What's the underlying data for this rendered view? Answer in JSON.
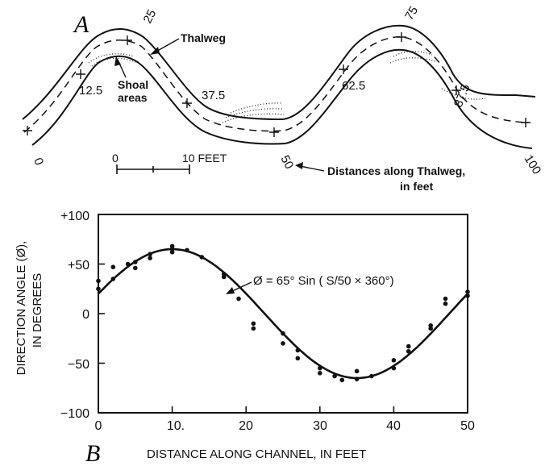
{
  "panel_a": {
    "letter": "A",
    "label_thalweg": "Thalweg",
    "label_shoal_line1": "Shoal",
    "label_shoal_line2": "areas",
    "distance_marks": [
      "0",
      "12.5",
      "25",
      "37.5",
      "50",
      "62.5",
      "75",
      "87.5",
      "100"
    ],
    "scale_bar": {
      "start": "0",
      "end": "10 FEET"
    },
    "legend_line1": "Distances along Thalweg,",
    "legend_line2": "in feet"
  },
  "panel_b": {
    "letter": "B",
    "ylabel_line1": "DIRECTION ANGLE (Ø),",
    "ylabel_line2": "IN DEGREES",
    "xlabel": "DISTANCE ALONG CHANNEL, IN FEET",
    "equation": "Ø = 65° Sin ( S/50 × 360°)",
    "x_ticks": [
      "0",
      "10.",
      "20",
      "30",
      "40",
      "50"
    ],
    "y_ticks": [
      "+100",
      "+50",
      "0",
      "−50",
      "−100"
    ]
  },
  "chart_data": {
    "type": "scatter",
    "xlim": [
      0,
      50
    ],
    "ylim": [
      -100,
      100
    ],
    "grid": false,
    "fit_curve": {
      "amplitude": 65,
      "period": 50,
      "phase_deg_at_zero": 20
    },
    "points": [
      [
        0,
        33
      ],
      [
        0,
        25
      ],
      [
        2,
        47
      ],
      [
        2,
        35
      ],
      [
        4,
        50
      ],
      [
        5,
        52
      ],
      [
        5,
        46
      ],
      [
        7,
        60
      ],
      [
        7,
        56
      ],
      [
        10,
        68
      ],
      [
        10,
        65
      ],
      [
        10,
        62
      ],
      [
        12,
        64
      ],
      [
        14,
        57
      ],
      [
        17,
        40
      ],
      [
        17,
        37
      ],
      [
        19,
        15
      ],
      [
        21,
        -10
      ],
      [
        21,
        -15
      ],
      [
        25,
        -20
      ],
      [
        25,
        -30
      ],
      [
        27,
        -37
      ],
      [
        27,
        -45
      ],
      [
        30,
        -55
      ],
      [
        30,
        -60
      ],
      [
        32,
        -63
      ],
      [
        33,
        -67
      ],
      [
        35,
        -58
      ],
      [
        35,
        -66
      ],
      [
        37,
        -63
      ],
      [
        40,
        -47
      ],
      [
        40,
        -55
      ],
      [
        42,
        -33
      ],
      [
        42,
        -38
      ],
      [
        45,
        -12
      ],
      [
        45,
        -15
      ],
      [
        47,
        15
      ],
      [
        47,
        10
      ],
      [
        50,
        22
      ],
      [
        50,
        18
      ]
    ]
  }
}
